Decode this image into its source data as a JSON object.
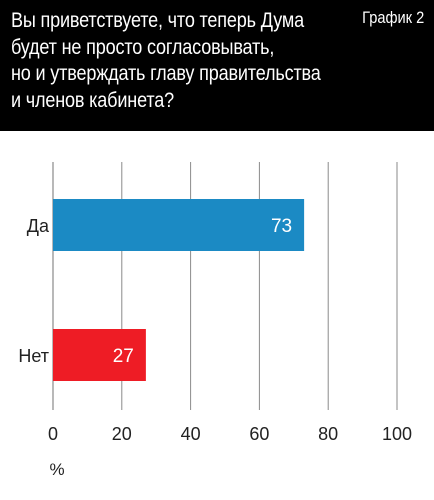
{
  "header": {
    "question_lines": [
      "Вы приветствуете, что теперь Дума",
      "будет не просто согласовывать,",
      "но и утверждать главу правительства",
      "и членов кабинета?"
    ],
    "chart_label": "График 2"
  },
  "colors": {
    "header_bg": "#000000",
    "bar_yes": "#1b8ac4",
    "bar_no": "#ee1c25",
    "grid": "#8a8a8a"
  },
  "chart_data": {
    "type": "bar",
    "orientation": "horizontal",
    "categories": [
      "Да",
      "Нет"
    ],
    "values": [
      73,
      27
    ],
    "value_labels": [
      "73",
      "27"
    ],
    "xlim": [
      0,
      100
    ],
    "xticks": [
      0,
      20,
      40,
      60,
      80,
      100
    ],
    "xlabel": "%",
    "ylabel": "",
    "grid": true,
    "legend": "none"
  }
}
